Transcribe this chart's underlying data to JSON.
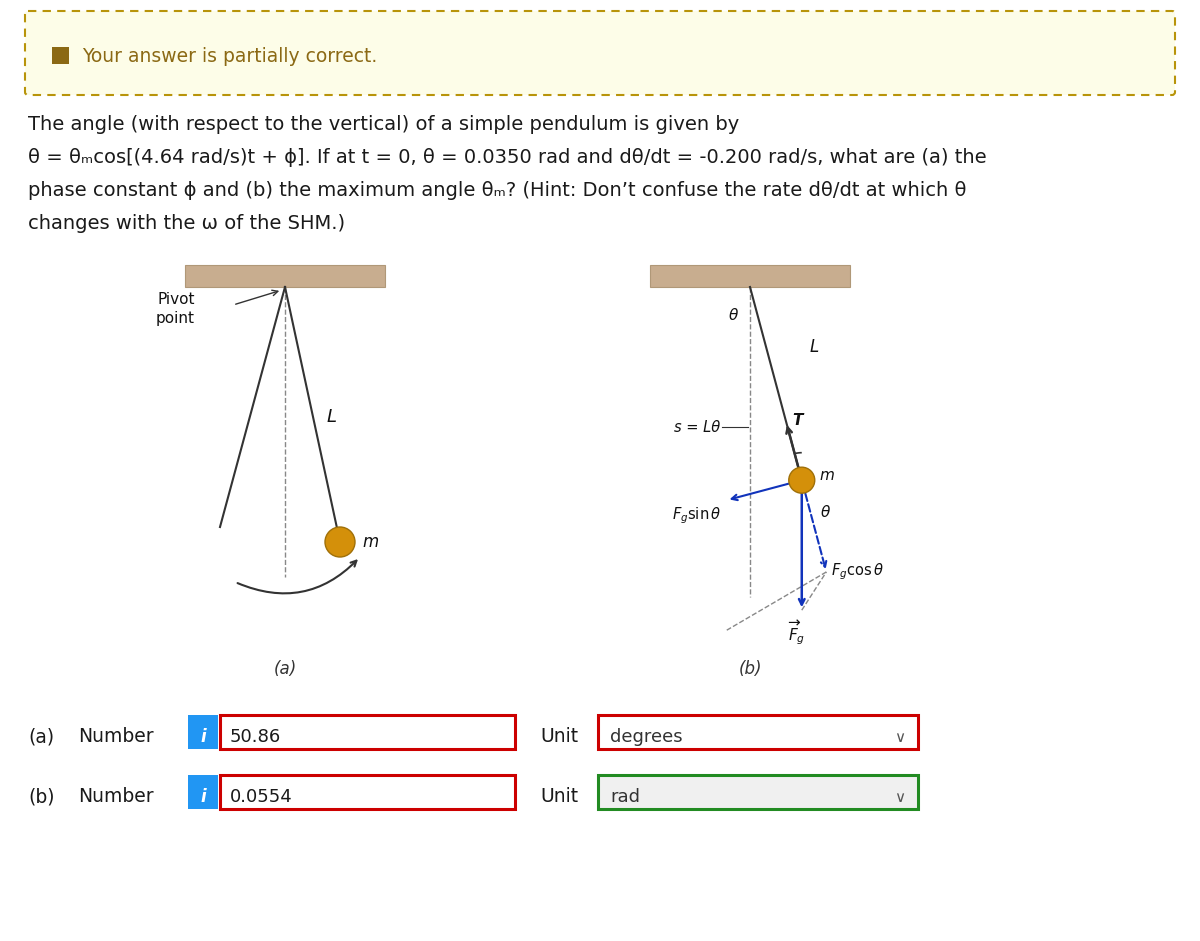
{
  "bg_color": "#ffffff",
  "alert_bg": "#fdfde8",
  "alert_border": "#b8940a",
  "alert_text": "Your answer is partially correct.",
  "alert_icon_color": "#8B6914",
  "question_line1": "The angle (with respect to the vertical) of a simple pendulum is given by",
  "question_line2": "θ = θₘcos[(4.64 rad/s)t + ϕ]. If at t = 0, θ = 0.0350 rad and dθ/dt = -0.200 rad/s, what are (a) the",
  "question_line3": "phase constant ϕ and (b) the maximum angle θₘ? (Hint: Don’t confuse the rate dθ/dt at which θ",
  "question_line4": "changes with the ω of the SHM.)",
  "label_a": "(a)",
  "label_b": "(b)",
  "row_a_label": "(a)",
  "row_b_label": "(b)",
  "value_a": "50.86",
  "value_b": "0.0554",
  "unit_a": "degrees",
  "unit_b": "rad",
  "input_border_color_a": "#cc0000",
  "input_border_color_b": "#cc0000",
  "unit_border_color_a": "#cc0000",
  "unit_border_color_b": "#228B22",
  "info_btn_color": "#2196F3",
  "text_color": "#1a1a1a",
  "ceiling_color": "#c8ad8f",
  "ceiling_edge": "#b09878"
}
